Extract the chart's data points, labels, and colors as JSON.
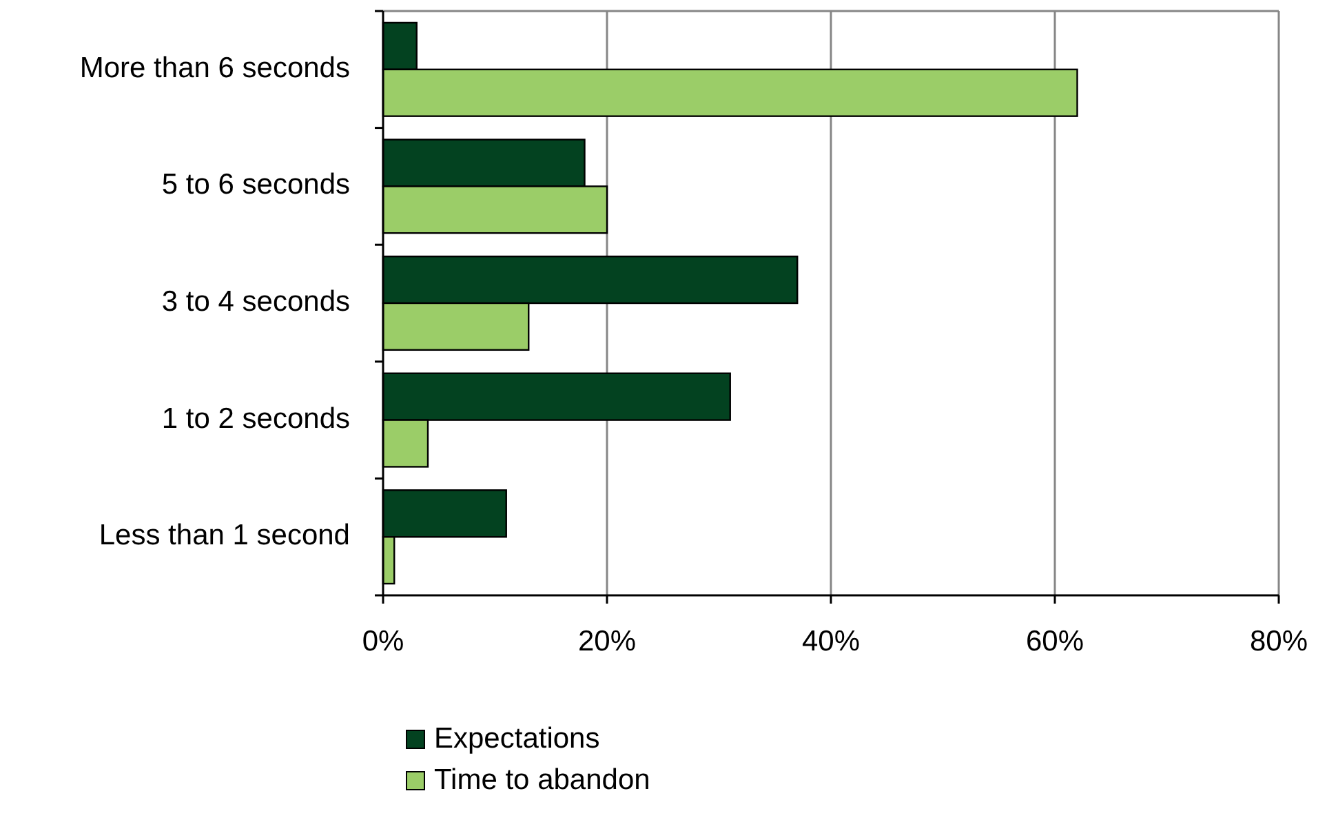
{
  "chart_data": {
    "type": "bar",
    "orientation": "horizontal",
    "categories": [
      "More than 6 seconds",
      "5 to 6 seconds",
      "3 to 4 seconds",
      "1 to 2 seconds",
      "Less than 1 second"
    ],
    "series": [
      {
        "name": "Expectations",
        "color": "#034220",
        "values": [
          3,
          18,
          37,
          31,
          11
        ]
      },
      {
        "name": "Time to abandon",
        "color": "#9bcd68",
        "values": [
          62,
          20,
          13,
          4,
          1
        ]
      }
    ],
    "xlim": [
      0,
      80
    ],
    "xticks": [
      {
        "value": 0,
        "label": "0%"
      },
      {
        "value": 20,
        "label": "20%"
      },
      {
        "value": 40,
        "label": "40%"
      },
      {
        "value": 60,
        "label": "60%"
      },
      {
        "value": 80,
        "label": "80%"
      }
    ],
    "grid": "x",
    "legend": "bottom"
  }
}
